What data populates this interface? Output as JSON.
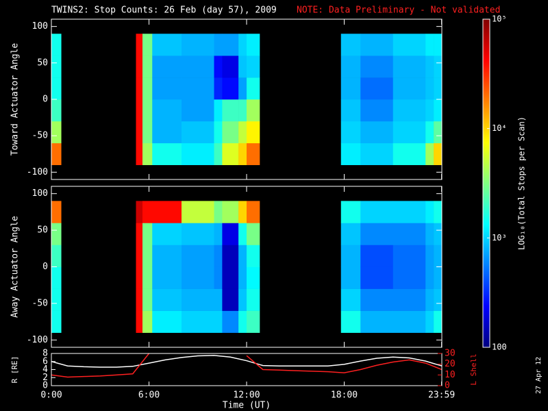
{
  "title": "TWINS2: Stop Counts: 26 Feb (day  57), 2009",
  "note": "NOTE: Data Preliminary - Not validated",
  "date_stamp": "27 Apr 12",
  "chart_data": [
    {
      "type": "heatmap",
      "ylabel": "Toward Actuator Angle",
      "xlim": [
        0,
        24
      ],
      "ylim": [
        -110,
        110
      ],
      "yticks": [
        100,
        50,
        0,
        -50,
        -100
      ],
      "xbins": [
        0,
        0.6,
        5.2,
        5.6,
        6.2,
        8,
        10,
        10.5,
        11.5,
        12,
        12.8,
        17.8,
        19,
        21,
        23,
        23.5,
        24
      ],
      "ybins": [
        -90,
        -60,
        -30,
        0,
        30,
        60,
        90
      ],
      "values": [
        [
          20000,
          4000,
          2000,
          1500,
          1500,
          1500
        ],
        null,
        [
          40000,
          40000,
          40000,
          40000,
          40000,
          40000
        ],
        [
          4000,
          3000,
          3000,
          3000,
          3000,
          3000
        ],
        [
          1500,
          800,
          800,
          700,
          700,
          900
        ],
        [
          1200,
          900,
          700,
          700,
          700,
          800
        ],
        [
          2000,
          1500,
          1200,
          300,
          250,
          700
        ],
        [
          6000,
          3000,
          2000,
          250,
          200,
          700
        ],
        [
          10000,
          5000,
          2000,
          700,
          900,
          1000
        ],
        [
          20000,
          8000,
          4000,
          1500,
          1000,
          1200
        ],
        null,
        [
          1200,
          1000,
          900,
          800,
          800,
          900
        ],
        [
          1000,
          800,
          600,
          500,
          600,
          800
        ],
        [
          1500,
          1000,
          900,
          800,
          800,
          1000
        ],
        [
          4000,
          1500,
          1000,
          900,
          900,
          1200
        ],
        [
          10000,
          2500,
          1200,
          1000,
          1000,
          1200
        ]
      ]
    },
    {
      "type": "heatmap",
      "ylabel": "Away Actuator Angle",
      "xlim": [
        0,
        24
      ],
      "ylim": [
        -110,
        110
      ],
      "yticks": [
        100,
        50,
        0,
        -50,
        -100
      ],
      "xbins": [
        0,
        0.6,
        5.2,
        5.6,
        6.2,
        8,
        10,
        10.5,
        11.5,
        12,
        12.8,
        17.8,
        19,
        21,
        23,
        23.5,
        24
      ],
      "ybins": [
        -90,
        -60,
        -30,
        0,
        30,
        60,
        90
      ],
      "values": [
        [
          1500,
          1500,
          1500,
          2000,
          3000,
          20000
        ],
        null,
        [
          40000,
          40000,
          40000,
          40000,
          40000,
          60000
        ],
        [
          4000,
          3000,
          3000,
          3000,
          3000,
          40000
        ],
        [
          1200,
          900,
          800,
          800,
          1000,
          40000
        ],
        [
          1000,
          800,
          700,
          700,
          900,
          5000
        ],
        [
          1000,
          800,
          600,
          600,
          800,
          3000
        ],
        [
          600,
          150,
          150,
          150,
          200,
          4000
        ],
        [
          1500,
          900,
          800,
          800,
          1500,
          10000
        ],
        [
          2000,
          1500,
          1300,
          1500,
          3000,
          20000
        ],
        null,
        [
          1500,
          1000,
          800,
          800,
          900,
          1500
        ],
        [
          800,
          600,
          400,
          400,
          600,
          1000
        ],
        [
          800,
          600,
          500,
          500,
          600,
          1000
        ],
        [
          1000,
          800,
          700,
          700,
          800,
          1200
        ],
        [
          1500,
          900,
          800,
          800,
          900,
          1500
        ]
      ]
    },
    {
      "type": "line",
      "xlabel": "Time (UT)",
      "ylabel": "R [RE]",
      "y2label": "L Shell",
      "xlim": [
        0,
        24
      ],
      "ylim": [
        0,
        8
      ],
      "yticks": [
        0,
        2,
        4,
        6,
        8
      ],
      "y2lim": [
        0,
        30
      ],
      "y2ticks": [
        0,
        10,
        20,
        30
      ],
      "xticks": [
        {
          "value": 0,
          "label": "0:00"
        },
        {
          "value": 6,
          "label": "6:00"
        },
        {
          "value": 12,
          "label": "12:00"
        },
        {
          "value": 18,
          "label": "18:00"
        },
        {
          "value": 23.983,
          "label": "23:59"
        }
      ],
      "x": [
        0,
        1,
        2,
        3,
        4,
        5,
        6,
        7,
        8,
        9,
        10,
        11,
        12,
        13,
        14,
        15,
        16,
        17,
        18,
        19,
        20,
        21,
        22,
        23,
        24
      ],
      "series": [
        {
          "color": "#ffffff",
          "values": [
            6.0,
            4.9,
            4.7,
            4.6,
            4.6,
            4.8,
            5.6,
            6.4,
            7.0,
            7.4,
            7.5,
            7.1,
            6.2,
            5.0,
            4.9,
            4.9,
            4.9,
            4.9,
            5.3,
            6.1,
            6.8,
            7.1,
            6.9,
            6.1,
            4.9
          ]
        },
        {
          "color": "#ff2020",
          "axis": "y2",
          "values": [
            10,
            8,
            8.5,
            9,
            10,
            11,
            30,
            null,
            null,
            null,
            null,
            null,
            28,
            15,
            14.5,
            14,
            13.5,
            13,
            12,
            15,
            19,
            22,
            24,
            21,
            15
          ]
        }
      ]
    },
    {
      "type": "colorbar",
      "label": "LOG₁₀(Total Stops per Scan)",
      "zscale": "log",
      "zlim": [
        100,
        100000
      ],
      "zticks": [
        100,
        {
          "value": 1000,
          "label": "10³"
        },
        {
          "value": 10000,
          "label": "10⁴"
        },
        {
          "value": 100000,
          "label": "10⁵"
        }
      ]
    }
  ]
}
